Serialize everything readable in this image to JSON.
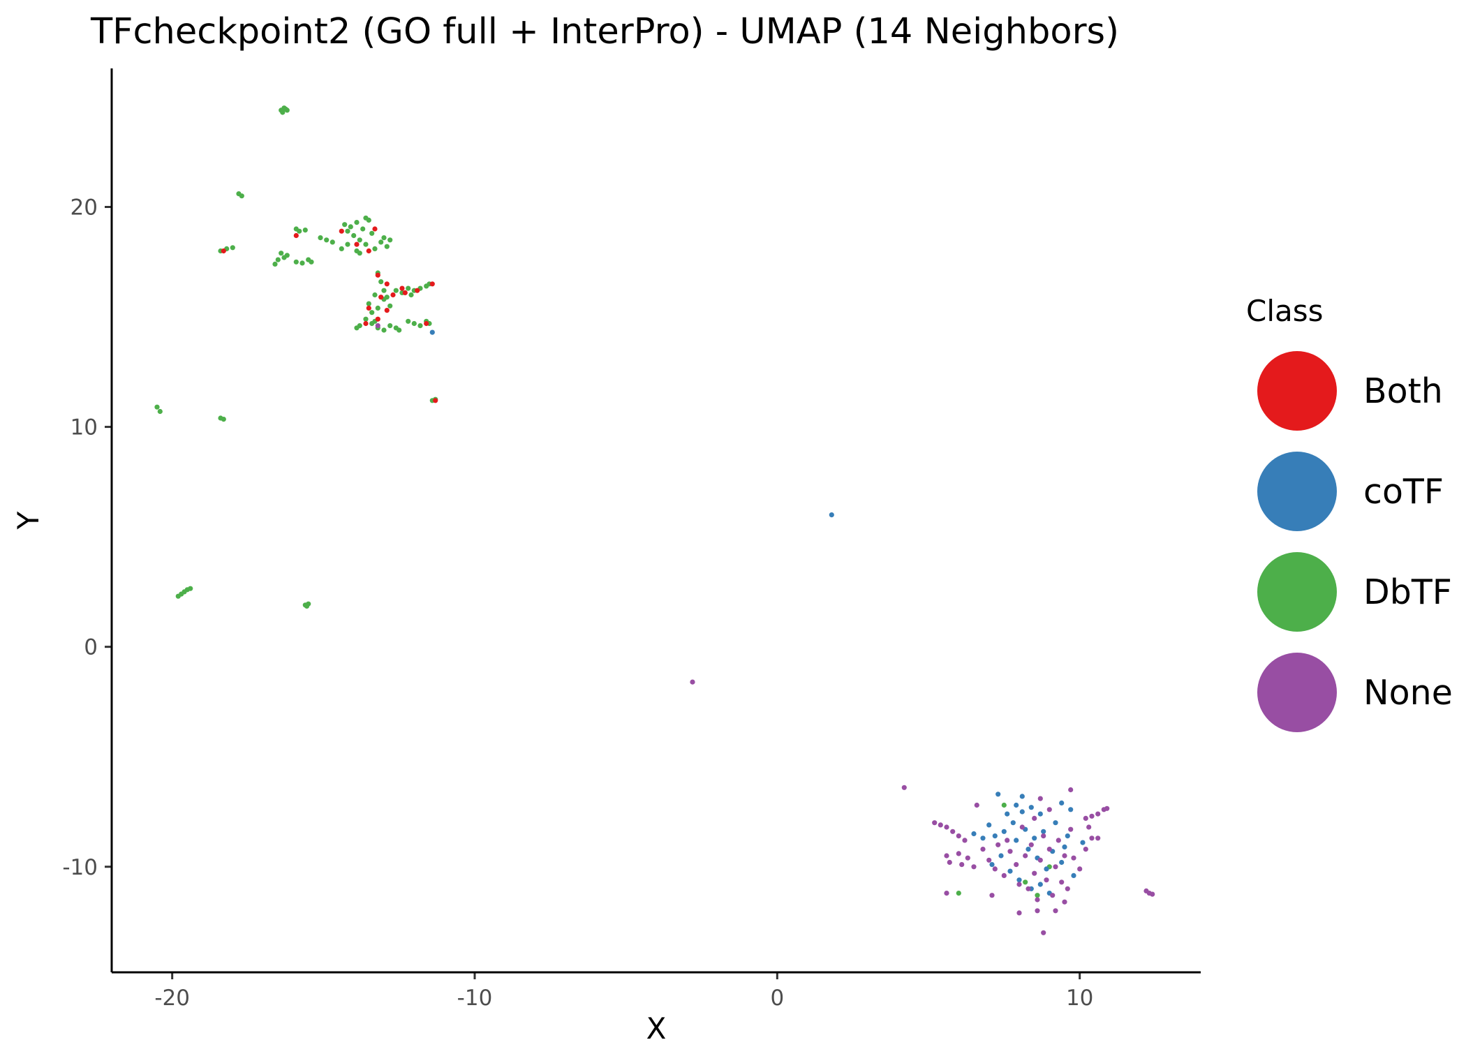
{
  "chart_data": {
    "type": "scatter",
    "title": "TFcheckpoint2 (GO full + InterPro) - UMAP (14 Neighbors)",
    "xlabel": "X",
    "ylabel": "Y",
    "xlim": [
      -22.0,
      14.0
    ],
    "ylim": [
      -14.8,
      26.3
    ],
    "x_ticks": [
      -20,
      -10,
      0,
      10
    ],
    "x_tick_labels": [
      "-20",
      "-10",
      "0",
      "10"
    ],
    "y_ticks": [
      -10,
      0,
      10,
      20
    ],
    "y_tick_labels": [
      "-10",
      "0",
      "10",
      "20"
    ],
    "grid": false,
    "legend": {
      "title": "Class",
      "placement": "right",
      "entries": [
        {
          "name": "Both",
          "color": "#E41A1C"
        },
        {
          "name": "coTF",
          "color": "#377EB8"
        },
        {
          "name": "DbTF",
          "color": "#4DAF4A"
        },
        {
          "name": "None",
          "color": "#984EA3"
        }
      ]
    },
    "series": [
      {
        "name": "DbTF",
        "color": "#4DAF4A",
        "points": [
          [
            -16.4,
            24.4
          ],
          [
            -16.3,
            24.5
          ],
          [
            -16.2,
            24.4
          ],
          [
            -16.35,
            24.3
          ],
          [
            -16.25,
            24.45
          ],
          [
            -17.8,
            20.6
          ],
          [
            -17.7,
            20.5
          ],
          [
            -18.4,
            18.0
          ],
          [
            -18.2,
            18.1
          ],
          [
            -18.0,
            18.15
          ],
          [
            -16.5,
            17.6
          ],
          [
            -16.4,
            17.9
          ],
          [
            -16.3,
            17.7
          ],
          [
            -16.6,
            17.4
          ],
          [
            -16.2,
            17.8
          ],
          [
            -15.9,
            17.5
          ],
          [
            -15.7,
            17.45
          ],
          [
            -15.5,
            17.6
          ],
          [
            -15.4,
            17.5
          ],
          [
            -15.9,
            19.0
          ],
          [
            -15.8,
            18.9
          ],
          [
            -15.6,
            18.95
          ],
          [
            -15.1,
            18.6
          ],
          [
            -14.9,
            18.5
          ],
          [
            -14.7,
            18.4
          ],
          [
            -14.3,
            19.2
          ],
          [
            -14.2,
            18.9
          ],
          [
            -14.1,
            19.1
          ],
          [
            -14.0,
            18.7
          ],
          [
            -13.9,
            19.3
          ],
          [
            -13.8,
            18.5
          ],
          [
            -13.7,
            19.0
          ],
          [
            -13.6,
            18.3
          ],
          [
            -13.5,
            19.4
          ],
          [
            -13.4,
            18.8
          ],
          [
            -14.4,
            18.1
          ],
          [
            -14.2,
            18.3
          ],
          [
            -13.8,
            17.9
          ],
          [
            -13.3,
            18.1
          ],
          [
            -13.1,
            18.4
          ],
          [
            -13.0,
            18.6
          ],
          [
            -12.8,
            18.5
          ],
          [
            -12.9,
            18.2
          ],
          [
            -13.6,
            19.5
          ],
          [
            -13.9,
            18.0
          ],
          [
            -13.2,
            17.0
          ],
          [
            -13.1,
            16.6
          ],
          [
            -13.0,
            16.2
          ],
          [
            -13.3,
            16.0
          ],
          [
            -12.9,
            15.9
          ],
          [
            -13.5,
            15.6
          ],
          [
            -13.4,
            15.2
          ],
          [
            -13.2,
            15.4
          ],
          [
            -13.0,
            15.8
          ],
          [
            -12.8,
            15.5
          ],
          [
            -13.6,
            14.9
          ],
          [
            -13.4,
            14.7
          ],
          [
            -13.2,
            14.5
          ],
          [
            -13.0,
            14.4
          ],
          [
            -12.8,
            14.6
          ],
          [
            -13.8,
            14.6
          ],
          [
            -13.9,
            14.5
          ],
          [
            -12.6,
            14.5
          ],
          [
            -12.5,
            14.4
          ],
          [
            -13.3,
            14.8
          ],
          [
            -12.6,
            16.2
          ],
          [
            -12.4,
            16.1
          ],
          [
            -12.2,
            16.3
          ],
          [
            -12.0,
            16.2
          ],
          [
            -11.8,
            16.3
          ],
          [
            -11.6,
            16.4
          ],
          [
            -11.5,
            16.5
          ],
          [
            -12.1,
            16.0
          ],
          [
            -12.2,
            14.8
          ],
          [
            -12.0,
            14.7
          ],
          [
            -11.8,
            14.6
          ],
          [
            -11.6,
            14.8
          ],
          [
            -11.5,
            14.7
          ],
          [
            -11.4,
            11.2
          ],
          [
            -11.3,
            11.25
          ],
          [
            -20.5,
            10.9
          ],
          [
            -20.4,
            10.7
          ],
          [
            -18.4,
            10.4
          ],
          [
            -18.3,
            10.35
          ],
          [
            -19.8,
            2.3
          ],
          [
            -19.7,
            2.4
          ],
          [
            -19.6,
            2.5
          ],
          [
            -19.5,
            2.6
          ],
          [
            -19.4,
            2.65
          ],
          [
            -15.6,
            1.9
          ],
          [
            -15.5,
            1.95
          ],
          [
            -15.55,
            1.85
          ],
          [
            6.0,
            -11.2
          ],
          [
            8.2,
            -10.7
          ],
          [
            8.6,
            -11.3
          ],
          [
            7.5,
            -7.2
          ],
          [
            9.0,
            -10.0
          ]
        ]
      },
      {
        "name": "Both",
        "color": "#E41A1C",
        "points": [
          [
            -18.3,
            18.0
          ],
          [
            -15.9,
            18.7
          ],
          [
            -14.4,
            18.9
          ],
          [
            -13.9,
            18.3
          ],
          [
            -13.5,
            18.0
          ],
          [
            -13.3,
            19.0
          ],
          [
            -13.2,
            16.9
          ],
          [
            -12.9,
            16.5
          ],
          [
            -13.1,
            15.9
          ],
          [
            -12.7,
            16.0
          ],
          [
            -12.3,
            16.1
          ],
          [
            -11.9,
            16.2
          ],
          [
            -11.4,
            16.5
          ],
          [
            -13.5,
            15.4
          ],
          [
            -13.2,
            14.9
          ],
          [
            -12.9,
            15.3
          ],
          [
            -11.6,
            14.7
          ],
          [
            -11.3,
            11.2
          ],
          [
            -13.6,
            14.7
          ],
          [
            -12.4,
            16.3
          ]
        ]
      },
      {
        "name": "coTF",
        "color": "#377EB8",
        "points": [
          [
            -11.4,
            14.3
          ],
          [
            1.8,
            6.0
          ],
          [
            7.3,
            -6.7
          ],
          [
            7.9,
            -7.2
          ],
          [
            8.1,
            -6.8
          ],
          [
            8.4,
            -7.3
          ],
          [
            9.4,
            -7.1
          ],
          [
            9.7,
            -7.4
          ],
          [
            7.0,
            -8.1
          ],
          [
            7.2,
            -8.6
          ],
          [
            7.5,
            -8.4
          ],
          [
            7.8,
            -8.0
          ],
          [
            7.9,
            -8.8
          ],
          [
            8.2,
            -8.3
          ],
          [
            8.3,
            -9.2
          ],
          [
            8.5,
            -8.7
          ],
          [
            8.6,
            -9.6
          ],
          [
            8.8,
            -8.4
          ],
          [
            8.9,
            -10.1
          ],
          [
            9.1,
            -9.3
          ],
          [
            9.2,
            -8.0
          ],
          [
            9.4,
            -9.8
          ],
          [
            9.6,
            -8.6
          ],
          [
            9.8,
            -10.4
          ],
          [
            7.4,
            -9.5
          ],
          [
            7.7,
            -10.2
          ],
          [
            8.0,
            -10.6
          ],
          [
            8.4,
            -11.0
          ],
          [
            8.7,
            -10.8
          ],
          [
            9.0,
            -11.2
          ],
          [
            6.8,
            -8.7
          ],
          [
            6.5,
            -8.5
          ],
          [
            7.6,
            -7.6
          ],
          [
            8.1,
            -7.5
          ],
          [
            8.7,
            -7.6
          ],
          [
            9.5,
            -9.1
          ],
          [
            10.1,
            -8.9
          ],
          [
            7.1,
            -9.9
          ]
        ]
      },
      {
        "name": "None",
        "color": "#984EA3",
        "points": [
          [
            -13.2,
            14.6
          ],
          [
            -2.8,
            -1.6
          ],
          [
            4.2,
            -6.4
          ],
          [
            9.7,
            -6.5
          ],
          [
            8.8,
            -13.0
          ],
          [
            5.2,
            -8.0
          ],
          [
            5.4,
            -8.1
          ],
          [
            5.6,
            -8.2
          ],
          [
            5.8,
            -8.4
          ],
          [
            6.0,
            -8.6
          ],
          [
            6.2,
            -8.8
          ],
          [
            5.6,
            -9.5
          ],
          [
            5.7,
            -9.8
          ],
          [
            6.0,
            -9.4
          ],
          [
            6.1,
            -9.9
          ],
          [
            6.3,
            -9.6
          ],
          [
            6.5,
            -10.0
          ],
          [
            5.6,
            -11.2
          ],
          [
            6.8,
            -9.2
          ],
          [
            7.0,
            -9.7
          ],
          [
            7.2,
            -10.1
          ],
          [
            7.3,
            -9.0
          ],
          [
            7.5,
            -10.4
          ],
          [
            7.7,
            -9.3
          ],
          [
            7.9,
            -9.9
          ],
          [
            8.0,
            -10.8
          ],
          [
            8.2,
            -9.5
          ],
          [
            8.3,
            -11.0
          ],
          [
            8.4,
            -9.0
          ],
          [
            8.5,
            -10.3
          ],
          [
            8.6,
            -11.5
          ],
          [
            8.7,
            -9.7
          ],
          [
            8.8,
            -8.6
          ],
          [
            8.9,
            -10.6
          ],
          [
            9.0,
            -9.2
          ],
          [
            9.1,
            -11.3
          ],
          [
            9.2,
            -10.0
          ],
          [
            9.3,
            -8.8
          ],
          [
            9.4,
            -10.7
          ],
          [
            9.5,
            -9.5
          ],
          [
            9.6,
            -11.0
          ],
          [
            9.7,
            -8.3
          ],
          [
            9.8,
            -9.6
          ],
          [
            10.0,
            -10.1
          ],
          [
            10.2,
            -9.2
          ],
          [
            10.3,
            -8.2
          ],
          [
            10.4,
            -8.7
          ],
          [
            10.6,
            -8.7
          ],
          [
            10.2,
            -7.8
          ],
          [
            10.4,
            -7.7
          ],
          [
            10.6,
            -7.6
          ],
          [
            10.8,
            -7.4
          ],
          [
            10.9,
            -7.35
          ],
          [
            8.5,
            -7.8
          ],
          [
            9.0,
            -7.4
          ],
          [
            8.1,
            -8.2
          ],
          [
            7.6,
            -8.8
          ],
          [
            8.6,
            -12.0
          ],
          [
            8.0,
            -12.1
          ],
          [
            9.2,
            -12.0
          ],
          [
            12.3,
            -11.2
          ],
          [
            12.2,
            -11.1
          ],
          [
            12.4,
            -11.25
          ],
          [
            6.6,
            -7.2
          ],
          [
            8.7,
            -6.9
          ],
          [
            9.5,
            -11.6
          ],
          [
            7.1,
            -11.3
          ]
        ]
      }
    ]
  }
}
